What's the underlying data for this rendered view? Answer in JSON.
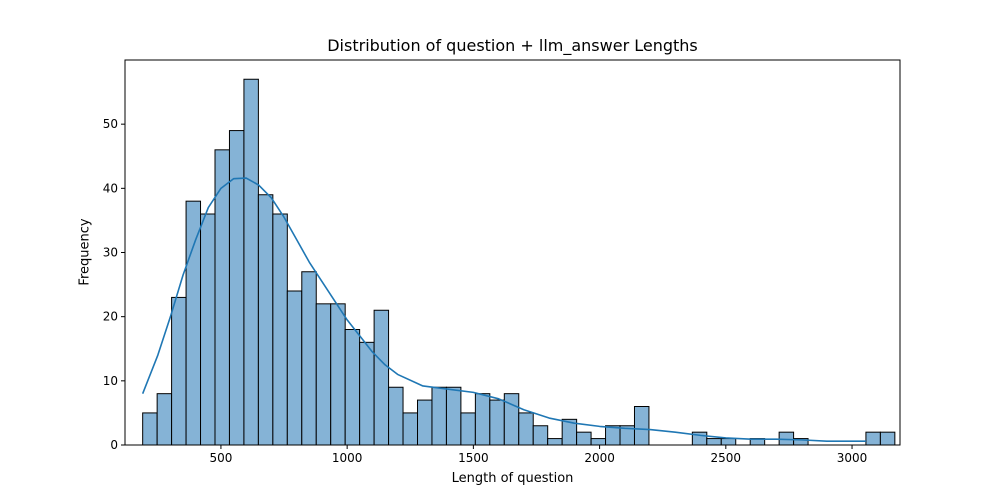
{
  "chart_data": {
    "type": "bar",
    "title": "Distribution of question + llm_answer Lengths",
    "xlabel": "Length of question",
    "ylabel": "Frequency",
    "xlim": [
      120,
      3190
    ],
    "ylim": [
      0,
      60
    ],
    "xticks": [
      500,
      1000,
      1500,
      2000,
      2500,
      3000
    ],
    "yticks": [
      0,
      10,
      20,
      30,
      40,
      50
    ],
    "bin_start": 190,
    "bin_width": 57.3,
    "values": [
      5,
      8,
      23,
      38,
      36,
      46,
      49,
      57,
      39,
      36,
      24,
      27,
      22,
      22,
      18,
      16,
      21,
      9,
      5,
      7,
      9,
      9,
      5,
      8,
      7,
      8,
      5,
      3,
      1,
      4,
      2,
      1,
      3,
      3,
      6,
      0,
      0,
      0,
      2,
      1,
      1,
      0,
      1,
      0,
      2,
      1,
      0,
      0,
      0,
      0,
      2,
      2
    ],
    "kde": {
      "x": [
        190,
        250,
        300,
        350,
        400,
        450,
        500,
        550,
        600,
        650,
        700,
        750,
        800,
        850,
        900,
        950,
        1000,
        1050,
        1100,
        1150,
        1200,
        1300,
        1400,
        1500,
        1600,
        1700,
        1800,
        1900,
        2000,
        2100,
        2200,
        2300,
        2400,
        2500,
        2600,
        2700,
        2800,
        2900,
        3000,
        3055
      ],
      "y": [
        8,
        14,
        20,
        26.5,
        32,
        37,
        40,
        41.5,
        41.6,
        40.5,
        38.5,
        35.5,
        32,
        28.5,
        25.5,
        22.5,
        19.5,
        17,
        14.5,
        12.5,
        11,
        9.2,
        8.7,
        8.2,
        7.2,
        5.5,
        4.2,
        3.4,
        2.9,
        2.6,
        2.4,
        2.0,
        1.5,
        1.1,
        0.9,
        0.9,
        0.8,
        0.6,
        0.6,
        0.6
      ]
    },
    "colors": {
      "bar_fill": "#85b3d6",
      "bar_edge": "#000000",
      "kde_line": "#1f77b4"
    },
    "grid": false,
    "legend": "none"
  }
}
